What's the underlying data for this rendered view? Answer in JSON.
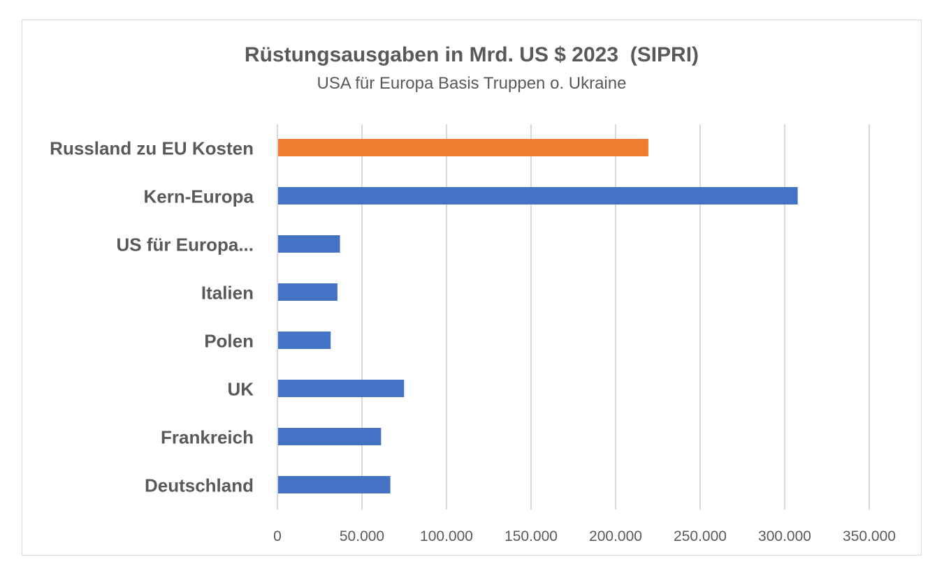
{
  "chart_data": {
    "type": "bar",
    "orientation": "horizontal",
    "title": "Rüstungsausgaben in Mrd. US $ 2023  (SIPRI)",
    "subtitle": "USA für Europa Basis Truppen o. Ukraine",
    "categories": [
      "Russland zu EU Kosten",
      "Kern-Europa",
      "US für Europa...",
      "Italien",
      "Polen",
      "UK",
      "Frankreich",
      "Deutschland"
    ],
    "values": [
      219400,
      307700,
      37000,
      35500,
      31500,
      74900,
      61300,
      66800
    ],
    "colors": [
      "#ED7D31",
      "#4472C4",
      "#4472C4",
      "#4472C4",
      "#4472C4",
      "#4472C4",
      "#4472C4",
      "#4472C4"
    ],
    "xlim": [
      0,
      350000
    ],
    "xticks": [
      0,
      50000,
      100000,
      150000,
      200000,
      250000,
      300000,
      350000
    ],
    "xtick_labels": [
      "0",
      "50.000",
      "100.000",
      "150.000",
      "200.000",
      "250.000",
      "300.000",
      "350.000"
    ],
    "grid": "vertical",
    "legend": "none",
    "xlabel": "",
    "ylabel": ""
  }
}
